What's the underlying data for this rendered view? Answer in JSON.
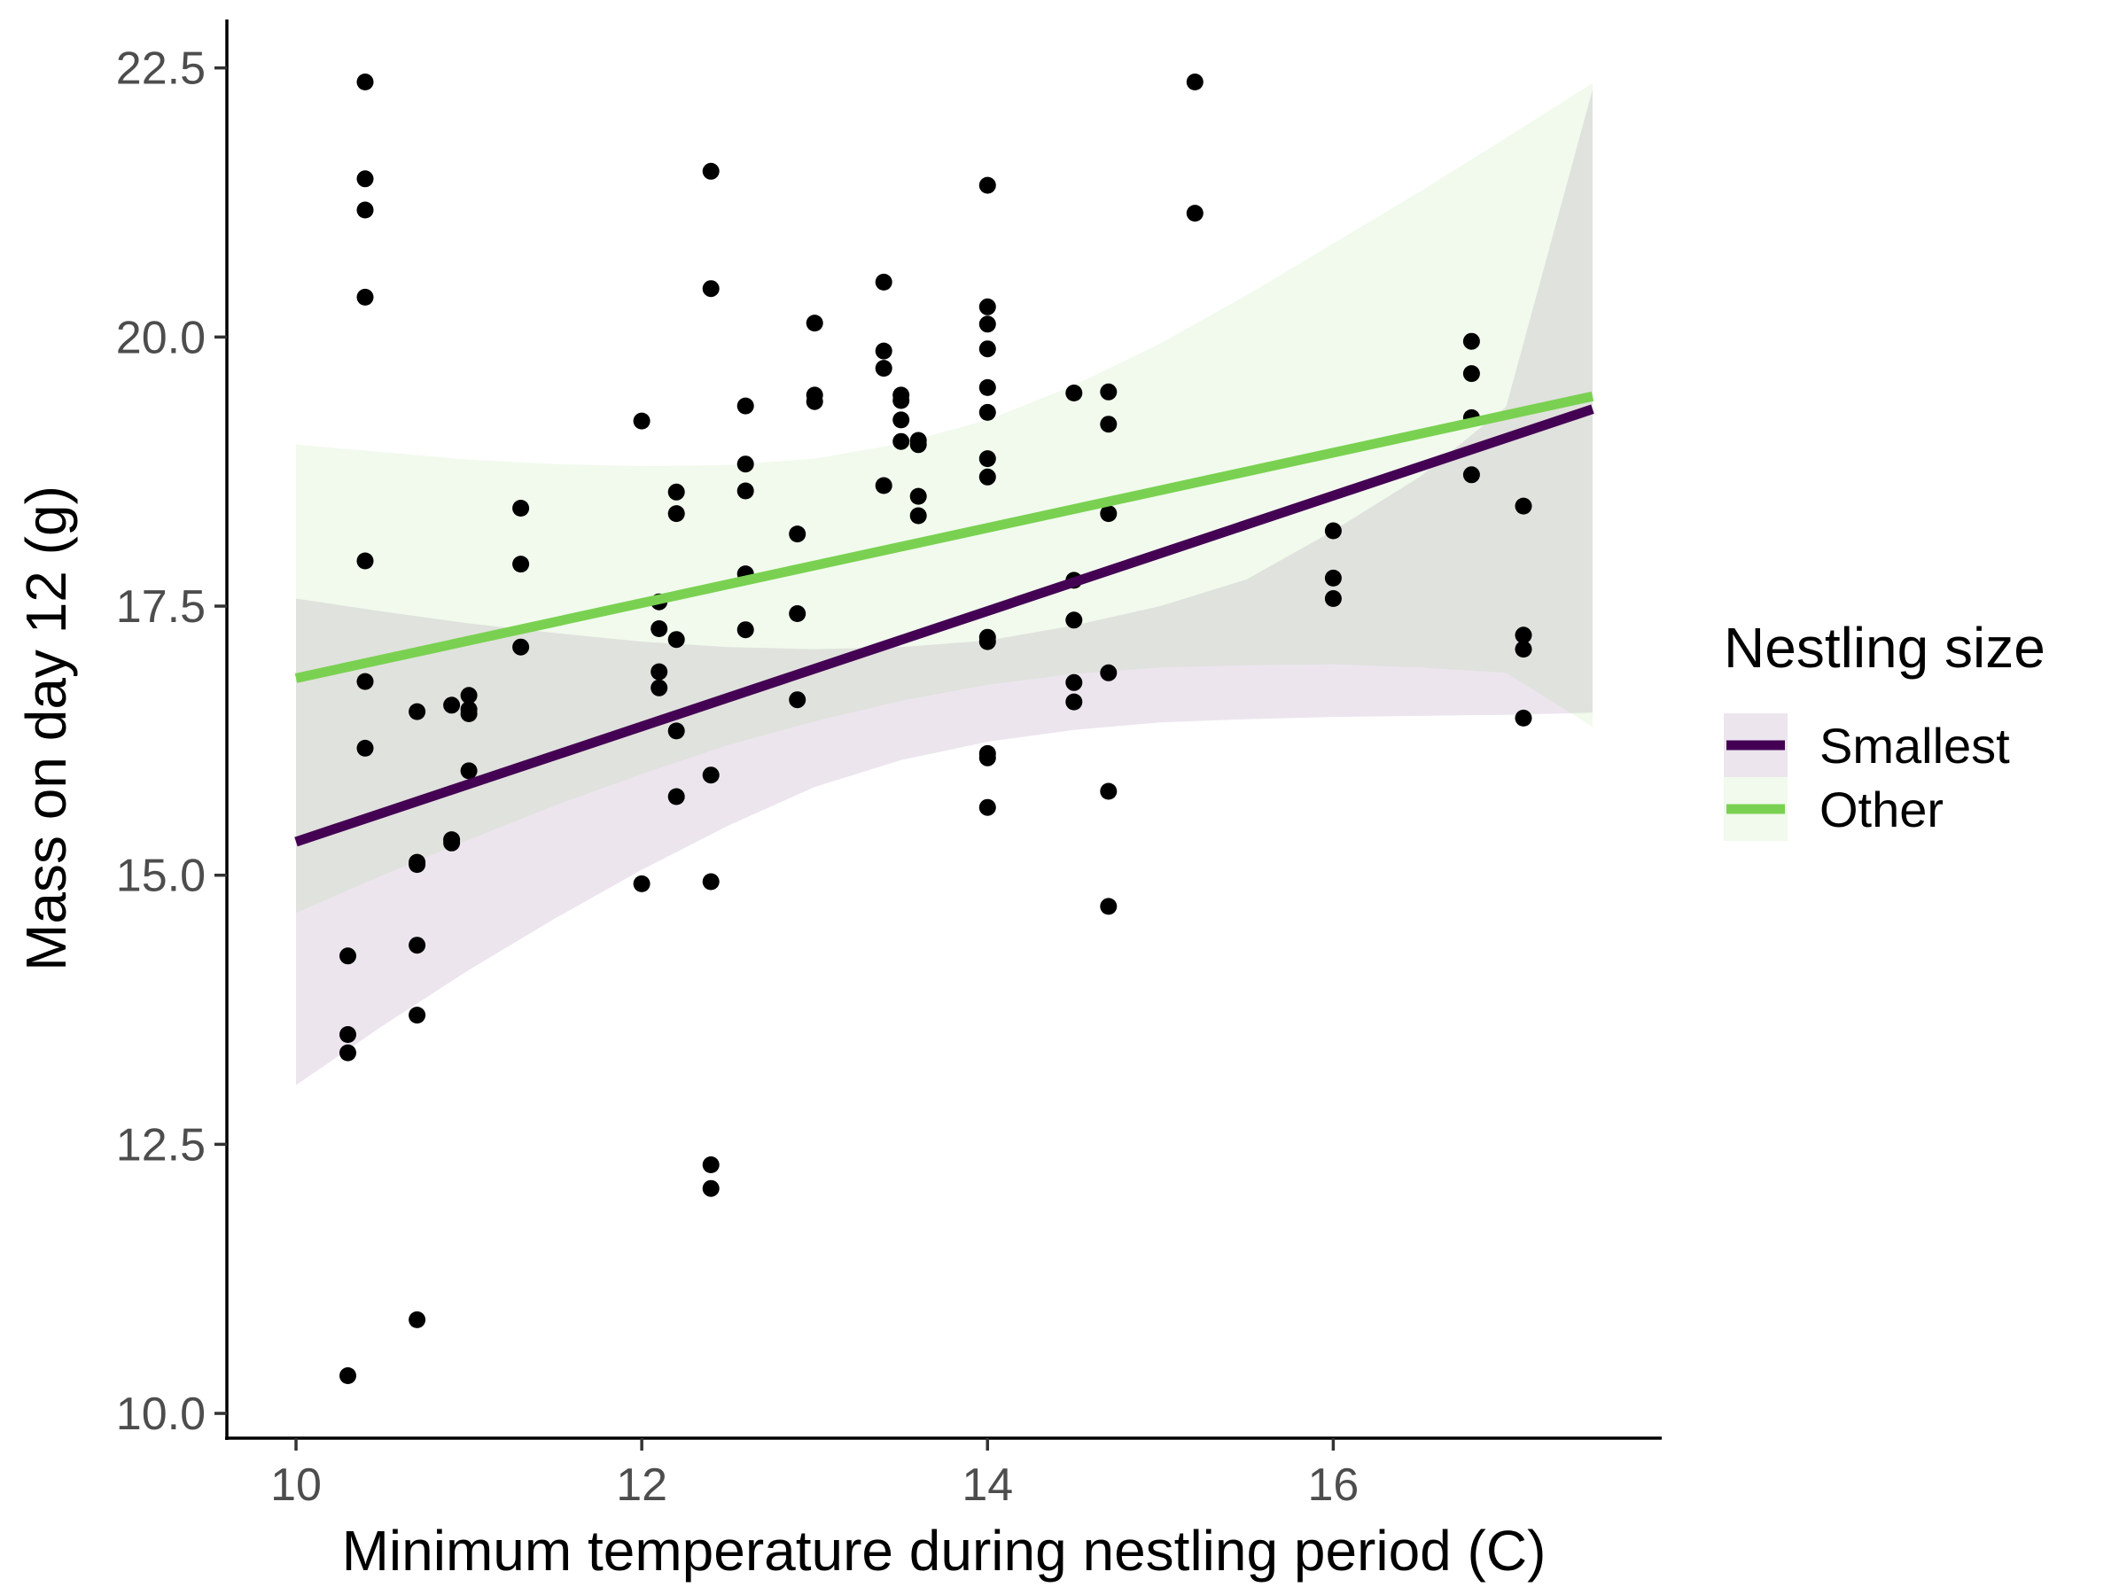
{
  "chart_data": {
    "type": "scatter",
    "xlabel": "Minimum temperature during nestling period (C)",
    "ylabel": "Mass on day 12 (g)",
    "xlim": [
      9.6,
      17.9
    ],
    "ylim": [
      9.77,
      22.95
    ],
    "x_ticks": [
      10,
      12,
      14,
      16
    ],
    "y_ticks": [
      10.0,
      12.5,
      15.0,
      17.5,
      20.0,
      22.5
    ],
    "x_tick_labels": [
      "10",
      "12",
      "14",
      "16"
    ],
    "y_tick_labels": [
      "10.0",
      "12.5",
      "15.0",
      "17.5",
      "20.0",
      "22.5"
    ],
    "grid": false,
    "legend": {
      "title": "Nestling size",
      "position": "right",
      "entries": [
        "Smallest",
        "Other"
      ]
    },
    "points": [
      [
        10.3,
        14.25
      ],
      [
        10.3,
        13.52
      ],
      [
        10.3,
        13.35
      ],
      [
        10.3,
        10.35
      ],
      [
        10.4,
        22.37
      ],
      [
        10.4,
        21.47
      ],
      [
        10.4,
        21.18
      ],
      [
        10.4,
        20.37
      ],
      [
        10.4,
        17.92
      ],
      [
        10.4,
        16.8
      ],
      [
        10.4,
        16.18
      ],
      [
        10.7,
        16.52
      ],
      [
        10.7,
        15.12
      ],
      [
        10.7,
        15.1
      ],
      [
        10.7,
        14.35
      ],
      [
        10.7,
        13.7
      ],
      [
        10.7,
        10.87
      ],
      [
        10.9,
        16.58
      ],
      [
        10.9,
        15.33
      ],
      [
        10.9,
        15.3
      ],
      [
        11.0,
        16.67
      ],
      [
        11.0,
        16.54
      ],
      [
        11.0,
        16.5
      ],
      [
        11.0,
        15.97
      ],
      [
        11.3,
        18.41
      ],
      [
        11.3,
        17.89
      ],
      [
        11.3,
        17.12
      ],
      [
        12.0,
        19.22
      ],
      [
        12.0,
        14.92
      ],
      [
        12.1,
        17.54
      ],
      [
        12.1,
        17.29
      ],
      [
        12.1,
        16.89
      ],
      [
        12.1,
        16.74
      ],
      [
        12.2,
        18.56
      ],
      [
        12.2,
        18.36
      ],
      [
        12.2,
        17.19
      ],
      [
        12.2,
        16.34
      ],
      [
        12.2,
        15.73
      ],
      [
        12.4,
        21.54
      ],
      [
        12.4,
        20.45
      ],
      [
        12.4,
        15.93
      ],
      [
        12.4,
        14.94
      ],
      [
        12.4,
        12.31
      ],
      [
        12.4,
        12.09
      ],
      [
        12.6,
        19.36
      ],
      [
        12.6,
        18.82
      ],
      [
        12.6,
        18.57
      ],
      [
        12.6,
        17.8
      ],
      [
        12.6,
        17.28
      ],
      [
        12.9,
        18.17
      ],
      [
        12.9,
        17.43
      ],
      [
        12.9,
        16.63
      ],
      [
        13.0,
        20.13
      ],
      [
        13.0,
        19.46
      ],
      [
        13.0,
        19.4
      ],
      [
        13.4,
        20.51
      ],
      [
        13.4,
        19.87
      ],
      [
        13.4,
        19.71
      ],
      [
        13.4,
        18.62
      ],
      [
        13.5,
        19.46
      ],
      [
        13.5,
        19.41
      ],
      [
        13.5,
        19.23
      ],
      [
        13.5,
        19.03
      ],
      [
        13.6,
        19.04
      ],
      [
        13.6,
        19.0
      ],
      [
        13.6,
        18.52
      ],
      [
        13.6,
        18.34
      ],
      [
        14.0,
        21.41
      ],
      [
        14.0,
        20.28
      ],
      [
        14.0,
        20.12
      ],
      [
        14.0,
        19.89
      ],
      [
        14.0,
        19.53
      ],
      [
        14.0,
        19.3
      ],
      [
        14.0,
        18.87
      ],
      [
        14.0,
        18.7
      ],
      [
        14.0,
        17.21
      ],
      [
        14.0,
        17.17
      ],
      [
        14.0,
        16.13
      ],
      [
        14.0,
        16.09
      ],
      [
        14.0,
        15.63
      ],
      [
        14.5,
        19.48
      ],
      [
        14.5,
        17.74
      ],
      [
        14.5,
        17.37
      ],
      [
        14.5,
        16.79
      ],
      [
        14.5,
        16.61
      ],
      [
        14.7,
        19.49
      ],
      [
        14.7,
        19.19
      ],
      [
        14.7,
        18.36
      ],
      [
        14.7,
        16.88
      ],
      [
        14.7,
        15.78
      ],
      [
        14.7,
        14.71
      ],
      [
        15.2,
        22.37
      ],
      [
        15.2,
        21.15
      ],
      [
        16.0,
        18.2
      ],
      [
        16.0,
        17.76
      ],
      [
        16.0,
        17.57
      ],
      [
        16.8,
        19.96
      ],
      [
        16.8,
        19.66
      ],
      [
        16.8,
        19.25
      ],
      [
        16.8,
        18.72
      ],
      [
        17.1,
        18.43
      ],
      [
        17.1,
        17.23
      ],
      [
        17.1,
        17.1
      ],
      [
        17.1,
        16.46
      ]
    ],
    "series": [
      {
        "name": "Smallest",
        "color": "#440154",
        "band_color": "#440154",
        "line": [
          [
            10.0,
            15.31
          ],
          [
            17.5,
            19.33
          ]
        ],
        "ribbon": [
          [
            10.0,
            13.05,
            17.57
          ],
          [
            10.5,
            13.6,
            17.45
          ],
          [
            11.0,
            14.12,
            17.34
          ],
          [
            11.5,
            14.6,
            17.25
          ],
          [
            12.0,
            15.05,
            17.17
          ],
          [
            12.5,
            15.46,
            17.12
          ],
          [
            13.0,
            15.82,
            17.1
          ],
          [
            13.5,
            16.07,
            17.12
          ],
          [
            14.0,
            16.24,
            17.18
          ],
          [
            14.5,
            16.35,
            17.32
          ],
          [
            15.0,
            16.42,
            17.5
          ],
          [
            15.5,
            16.45,
            17.75
          ],
          [
            16.0,
            16.47,
            18.2
          ],
          [
            16.5,
            16.48,
            18.7
          ],
          [
            17.0,
            16.49,
            19.35
          ],
          [
            17.5,
            16.51,
            22.3
          ]
        ]
      },
      {
        "name": "Other",
        "color": "#7AD151",
        "band_color": "#7AD151",
        "line": [
          [
            10.0,
            16.83
          ],
          [
            17.5,
            19.45
          ]
        ],
        "ribbon": [
          [
            10.0,
            14.65,
            19.0
          ],
          [
            10.5,
            15.0,
            18.93
          ],
          [
            11.0,
            15.33,
            18.86
          ],
          [
            11.5,
            15.65,
            18.82
          ],
          [
            12.0,
            15.94,
            18.8
          ],
          [
            12.5,
            16.21,
            18.81
          ],
          [
            13.0,
            16.43,
            18.87
          ],
          [
            13.5,
            16.62,
            19.01
          ],
          [
            14.0,
            16.77,
            19.23
          ],
          [
            14.5,
            16.87,
            19.55
          ],
          [
            15.0,
            16.93,
            19.94
          ],
          [
            15.5,
            16.95,
            20.39
          ],
          [
            16.0,
            16.96,
            20.87
          ],
          [
            16.5,
            16.93,
            21.35
          ],
          [
            17.0,
            16.88,
            21.85
          ],
          [
            17.5,
            16.38,
            22.36
          ]
        ]
      }
    ]
  }
}
